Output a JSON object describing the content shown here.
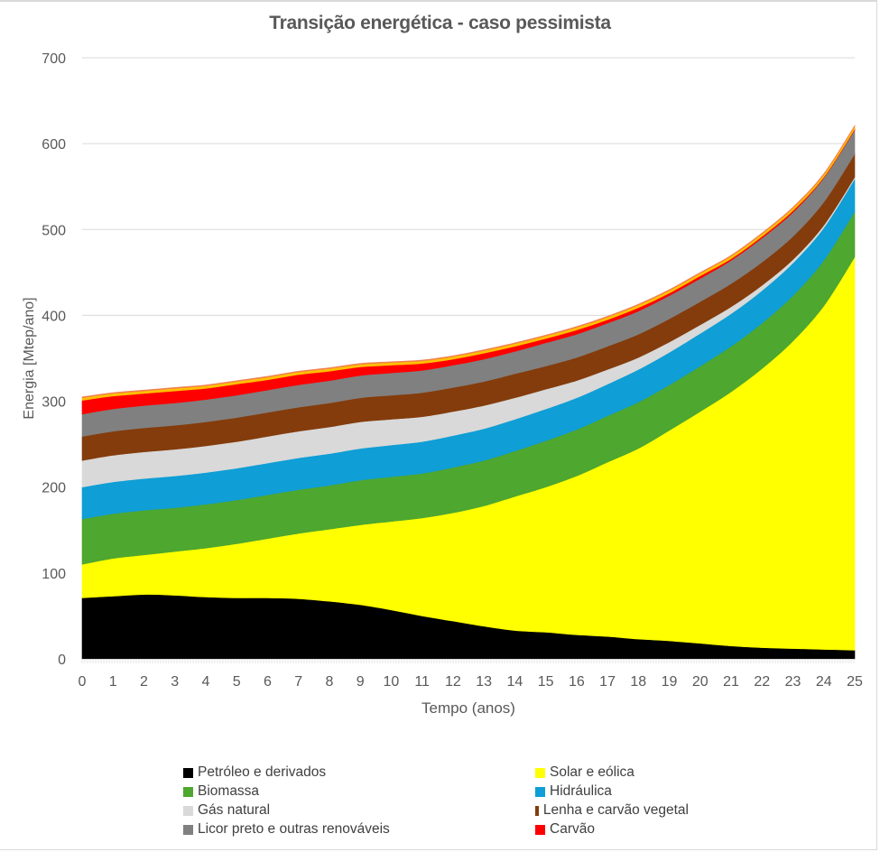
{
  "chart_data": {
    "type": "area",
    "stacked": true,
    "title": "Transição energética - caso pessimista",
    "xlabel": "Tempo (anos)",
    "ylabel": "Energia [Mtep/ano]",
    "x": [
      0,
      1,
      2,
      3,
      4,
      5,
      6,
      7,
      8,
      9,
      10,
      11,
      12,
      13,
      14,
      15,
      16,
      17,
      18,
      19,
      20,
      21,
      22,
      23,
      24,
      25
    ],
    "xticks": [
      "0",
      "1",
      "2",
      "3",
      "4",
      "5",
      "6",
      "7",
      "8",
      "9",
      "10",
      "11",
      "12",
      "13",
      "14",
      "15",
      "16",
      "17",
      "18",
      "19",
      "20",
      "21",
      "22",
      "23",
      "24",
      "25"
    ],
    "ylim": [
      0,
      700
    ],
    "yticks": [
      "0",
      "100",
      "200",
      "300",
      "400",
      "500",
      "600",
      "700"
    ],
    "grid": true,
    "legend_position": "bottom",
    "series": [
      {
        "name": "Petróleo e derivados",
        "color": "#000000",
        "in_legend": true,
        "values": [
          71,
          73,
          75,
          74,
          72,
          71,
          71,
          70,
          67,
          63,
          57,
          50,
          44,
          38,
          33,
          31,
          28,
          26,
          23,
          21,
          18,
          15,
          13,
          12,
          11,
          10
        ]
      },
      {
        "name": "Solar e eólica",
        "color": "#FFFF00",
        "in_legend": true,
        "values": [
          39,
          44,
          46,
          51,
          57,
          63,
          69,
          76,
          84,
          93,
          103,
          114,
          126,
          140,
          156,
          169,
          185,
          203,
          222,
          245,
          270,
          296,
          325,
          358,
          400,
          458
        ]
      },
      {
        "name": "Biomassa",
        "color": "#4EA72E",
        "in_legend": true,
        "values": [
          53,
          52,
          52,
          51,
          51,
          51,
          51,
          51,
          51,
          52,
          52,
          52,
          53,
          53,
          53,
          54,
          54,
          54,
          54,
          53,
          53,
          53,
          53,
          53,
          53,
          53
        ]
      },
      {
        "name": "Hidráulica",
        "color": "#0F9ED5",
        "in_legend": true,
        "values": [
          37,
          37,
          37,
          37,
          37,
          37,
          37,
          37,
          37,
          37,
          37,
          37,
          37,
          37,
          37,
          37,
          37,
          37,
          38,
          38,
          38,
          38,
          38,
          38,
          38,
          38
        ]
      },
      {
        "name": "Gás natural",
        "color": "#D9D9D9",
        "in_legend": true,
        "values": [
          31,
          31,
          31,
          31,
          31,
          31,
          31,
          31,
          31,
          31,
          30,
          29,
          28,
          27,
          25,
          23,
          20,
          17,
          14,
          12,
          10,
          8,
          6,
          4,
          3,
          2
        ]
      },
      {
        "name": "Lenha e carvão vegetal",
        "color": "#843C0C",
        "in_legend": true,
        "values": [
          28,
          28,
          28,
          28,
          28,
          28,
          28,
          28,
          28,
          28,
          28,
          28,
          28,
          28,
          28,
          27,
          27,
          27,
          27,
          27,
          27,
          27,
          27,
          27,
          27,
          27
        ]
      },
      {
        "name": "Licor preto e outras renováveis",
        "color": "#808080",
        "in_legend": true,
        "values": [
          26,
          26,
          26,
          26,
          26,
          26,
          26,
          26,
          26,
          26,
          26,
          26,
          26,
          26,
          26,
          27,
          27,
          27,
          27,
          27,
          27,
          27,
          28,
          28,
          28,
          28
        ]
      },
      {
        "name": "Carvão",
        "color": "#FF0000",
        "in_legend": true,
        "values": [
          16,
          15,
          14,
          14,
          13,
          13,
          12,
          12,
          11,
          10,
          9,
          8,
          7,
          7,
          6,
          5,
          5,
          4,
          4,
          3,
          3,
          2,
          2,
          2,
          1,
          1
        ]
      },
      {
        "name": "",
        "color": "#FFC000",
        "in_legend": false,
        "values": [
          3,
          3,
          3,
          3,
          3,
          3,
          3,
          3,
          3,
          3,
          3,
          3,
          3,
          3,
          3,
          3,
          3,
          3,
          3,
          3,
          3,
          3,
          3,
          3,
          3,
          3
        ]
      },
      {
        "name": "",
        "color": "#F08050",
        "in_legend": false,
        "values": [
          1,
          1,
          1,
          1,
          1,
          1,
          1,
          1,
          1,
          1,
          1,
          1,
          1,
          1,
          1,
          1,
          1,
          1,
          1,
          1,
          1,
          1,
          1,
          1,
          1,
          1
        ]
      }
    ],
    "legend": [
      {
        "name": "Petróleo e derivados",
        "color": "#000000"
      },
      {
        "name": "Solar e eólica",
        "color": "#FFFF00"
      },
      {
        "name": "Biomassa",
        "color": "#4EA72E"
      },
      {
        "name": "Hidráulica",
        "color": "#0F9ED5"
      },
      {
        "name": "Gás natural",
        "color": "#D9D9D9"
      },
      {
        "name": "Lenha e carvão vegetal",
        "color": "#843C0C"
      },
      {
        "name": "Licor preto e outras renováveis",
        "color": "#808080"
      },
      {
        "name": "Carvão",
        "color": "#FF0000"
      }
    ]
  }
}
